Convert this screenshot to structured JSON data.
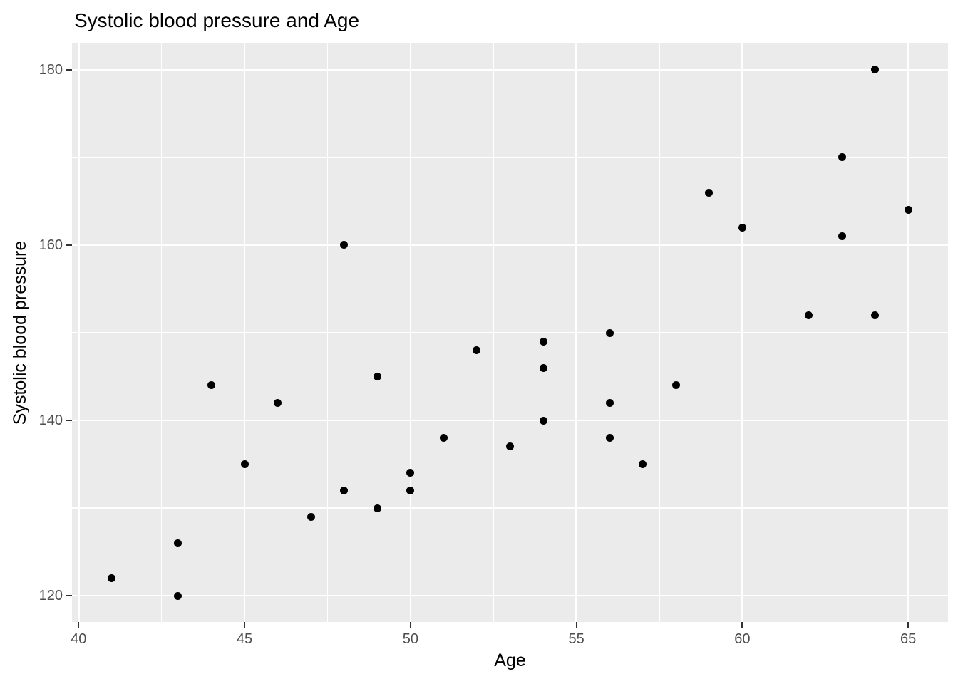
{
  "title": "Systolic blood pressure and Age",
  "chart_data": {
    "type": "scatter",
    "title": "Systolic blood pressure and Age",
    "xlabel": "Age",
    "ylabel": "Systolic blood pressure",
    "x_domain": [
      39.8,
      66.2
    ],
    "y_domain": [
      117,
      183
    ],
    "x_major_ticks": [
      40,
      45,
      50,
      55,
      60,
      65
    ],
    "x_minor_ticks": [
      42.5,
      47.5,
      52.5,
      57.5,
      62.5
    ],
    "y_major_ticks": [
      120,
      140,
      160,
      180
    ],
    "y_minor_ticks": [
      130,
      150,
      170
    ],
    "grid": true,
    "legend": false,
    "panel_bg_color": "#EBEBEB",
    "grid_color": "#FFFFFF",
    "point_color": "#000000",
    "tick_label_color": "#4D4D4D",
    "points": [
      {
        "age": 41,
        "sbp": 122
      },
      {
        "age": 43,
        "sbp": 120
      },
      {
        "age": 43,
        "sbp": 126
      },
      {
        "age": 44,
        "sbp": 144
      },
      {
        "age": 45,
        "sbp": 135
      },
      {
        "age": 46,
        "sbp": 142
      },
      {
        "age": 47,
        "sbp": 129
      },
      {
        "age": 48,
        "sbp": 132
      },
      {
        "age": 48,
        "sbp": 160
      },
      {
        "age": 49,
        "sbp": 130
      },
      {
        "age": 49,
        "sbp": 145
      },
      {
        "age": 50,
        "sbp": 132
      },
      {
        "age": 50,
        "sbp": 134
      },
      {
        "age": 51,
        "sbp": 138
      },
      {
        "age": 52,
        "sbp": 148
      },
      {
        "age": 53,
        "sbp": 137
      },
      {
        "age": 54,
        "sbp": 140
      },
      {
        "age": 54,
        "sbp": 146
      },
      {
        "age": 54,
        "sbp": 149
      },
      {
        "age": 56,
        "sbp": 138
      },
      {
        "age": 56,
        "sbp": 142
      },
      {
        "age": 56,
        "sbp": 150
      },
      {
        "age": 57,
        "sbp": 135
      },
      {
        "age": 58,
        "sbp": 144
      },
      {
        "age": 59,
        "sbp": 166
      },
      {
        "age": 60,
        "sbp": 162
      },
      {
        "age": 62,
        "sbp": 152
      },
      {
        "age": 63,
        "sbp": 161
      },
      {
        "age": 63,
        "sbp": 170
      },
      {
        "age": 64,
        "sbp": 152
      },
      {
        "age": 64,
        "sbp": 180
      },
      {
        "age": 65,
        "sbp": 164
      }
    ]
  }
}
